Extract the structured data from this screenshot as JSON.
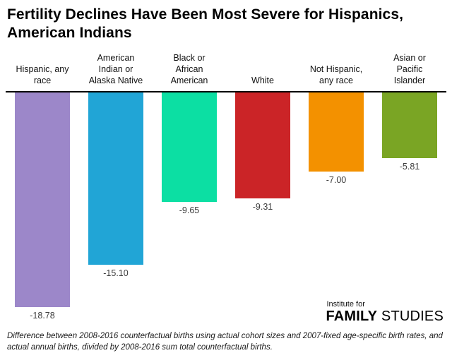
{
  "title": "Fertility Declines Have Been Most Severe for Hispanics, American Indians",
  "chart_data": {
    "type": "bar",
    "orientation": "vertical-negative",
    "title": "Fertility Declines Have Been Most Severe for Hispanics, American Indians",
    "categories": [
      "Hispanic, any\nrace",
      "American\nIndian or\nAlaska Native",
      "Black or\nAfrican\nAmerican",
      "White",
      "Not Hispanic,\nany race",
      "Asian or\nPacific\nIslander"
    ],
    "values": [
      -18.78,
      -15.1,
      -9.65,
      -9.31,
      -7.0,
      -5.81
    ],
    "value_labels": [
      "-18.78",
      "-15.10",
      "-9.65",
      "-9.31",
      "-7.00",
      "-5.81"
    ],
    "colors": [
      "#9c87c9",
      "#21a5d6",
      "#0cdfa3",
      "#cb2427",
      "#f39100",
      "#7aa524"
    ],
    "baseline": 0,
    "ylim": [
      -20,
      0
    ],
    "grid": false,
    "legend": "none",
    "xlabel": "",
    "ylabel": ""
  },
  "logo": {
    "line1": "Institute for",
    "line2_bold": "FAMILY",
    "line2_regular": "STUDIES"
  },
  "caption": "Difference between 2008-2016 counterfactual births using actual cohort sizes and 2007-fixed age-specific birth rates, and actual annual births, divided by 2008-2016 sum total counterfactual births."
}
